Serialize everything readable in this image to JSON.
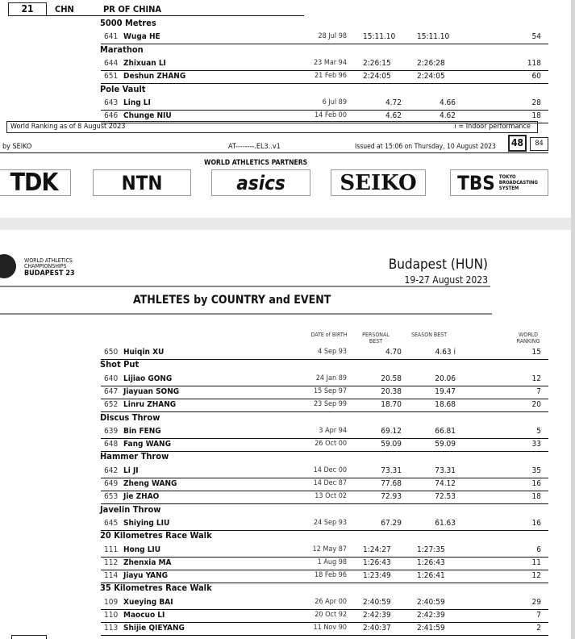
{
  "page1": {
    "country_number": "21",
    "country_code": "CHN",
    "country_name": "PR OF CHINA",
    "events": [
      {
        "name": "5000 Metres",
        "athletes": [
          {
            "bib": "641",
            "name": "Wuga HE",
            "dob": "28 Jul 98",
            "pb": "15:11.10",
            "sb": "15:11.10",
            "rank": "54"
          }
        ]
      },
      {
        "name": "Marathon",
        "athletes": [
          {
            "bib": "644",
            "name": "Zhixuan LI",
            "dob": "23 Mar 94",
            "pb": "2:26:15",
            "sb": "2:26:28",
            "rank": "118"
          },
          {
            "bib": "651",
            "name": "Deshun ZHANG",
            "dob": "21 Feb 96",
            "pb": "2:24:05",
            "sb": "2:24:05",
            "rank": "60"
          }
        ]
      },
      {
        "name": "Pole Vault",
        "athletes": [
          {
            "bib": "643",
            "name": "Ling LI",
            "dob": "6 Jul 89",
            "pb": "4.72",
            "sb": "4.66",
            "rank": "28"
          },
          {
            "bib": "646",
            "name": "Chunge NIU",
            "dob": "14 Feb 00",
            "pb": "4.62",
            "sb": "4.62",
            "rank": "18"
          }
        ]
      }
    ],
    "ranking_note": "World Ranking as of 8 August 2023",
    "indoor_note": "i = Indoor performance",
    "footer": {
      "timing": "by SEIKO",
      "code": "AT--------.EL3..v1",
      "issued": "Issued at 15:06 on Thursday, 10 August  2023",
      "page": "48",
      "total": "84"
    },
    "partners_title": "WORLD ATHLETICS PARTNERS",
    "partners": [
      "TDK",
      "NTN",
      "asics",
      "SEIKO",
      "TBS"
    ],
    "tbs_sub": "TOKYO BROADCASTING SYSTEM"
  },
  "page2": {
    "logo_lines": [
      "WORLD ATHLETICS",
      "CHAMPIONSHIPS",
      "BUDAPEST 23"
    ],
    "venue": "Budapest (HUN)",
    "dates": "19-27 August 2023",
    "title": "ATHLETES by COUNTRY and EVENT",
    "headers": {
      "dob": "DATE of BIRTH",
      "pb": "PERSONAL BEST",
      "sb": "SEASON BEST",
      "rank": "WORLD RANKING"
    },
    "continued": [
      {
        "bib": "650",
        "name": "Huiqin XU",
        "dob": "4 Sep 93",
        "pb": "4.70",
        "sb": "4.63  i",
        "rank": "15"
      }
    ],
    "events": [
      {
        "name": "Shot Put",
        "athletes": [
          {
            "bib": "640",
            "name": "Lijiao GONG",
            "dob": "24 Jan 89",
            "pb": "20.58",
            "sb": "20.06",
            "rank": "12"
          },
          {
            "bib": "647",
            "name": "Jiayuan SONG",
            "dob": "15 Sep 97",
            "pb": "20.38",
            "sb": "19.47",
            "rank": "7"
          },
          {
            "bib": "652",
            "name": "Linru ZHANG",
            "dob": "23 Sep 99",
            "pb": "18.70",
            "sb": "18.68",
            "rank": "20"
          }
        ]
      },
      {
        "name": "Discus Throw",
        "athletes": [
          {
            "bib": "639",
            "name": "Bin FENG",
            "dob": "3 Apr 94",
            "pb": "69.12",
            "sb": "66.81",
            "rank": "5"
          },
          {
            "bib": "648",
            "name": "Fang WANG",
            "dob": "26 Oct 00",
            "pb": "59.09",
            "sb": "59.09",
            "rank": "33"
          }
        ]
      },
      {
        "name": "Hammer Throw",
        "athletes": [
          {
            "bib": "642",
            "name": "Li JI",
            "dob": "14 Dec 00",
            "pb": "73.31",
            "sb": "73.31",
            "rank": "35"
          },
          {
            "bib": "649",
            "name": "Zheng WANG",
            "dob": "14 Dec 87",
            "pb": "77.68",
            "sb": "74.12",
            "rank": "16"
          },
          {
            "bib": "653",
            "name": "Jie ZHAO",
            "dob": "13 Oct 02",
            "pb": "72.93",
            "sb": "72.53",
            "rank": "18"
          }
        ]
      },
      {
        "name": "Javelin Throw",
        "athletes": [
          {
            "bib": "645",
            "name": "Shiying LIU",
            "dob": "24 Sep 93",
            "pb": "67.29",
            "sb": "61.63",
            "rank": "16"
          }
        ]
      },
      {
        "name": "20 Kilometres Race Walk",
        "athletes": [
          {
            "bib": "111",
            "name": "Hong LIU",
            "dob": "12 May 87",
            "pb": "1:24:27",
            "sb": "1:27:35",
            "rank": "6"
          },
          {
            "bib": "112",
            "name": "Zhenxia MA",
            "dob": "1 Aug 98",
            "pb": "1:26:43",
            "sb": "1:26:43",
            "rank": "11"
          },
          {
            "bib": "114",
            "name": "Jiayu YANG",
            "dob": "18 Feb 96",
            "pb": "1:23:49",
            "sb": "1:26:41",
            "rank": "12"
          }
        ]
      },
      {
        "name": "35 Kilometres Race Walk",
        "athletes": [
          {
            "bib": "109",
            "name": "Xueying BAI",
            "dob": "26 Apr 00",
            "pb": "2:40:59",
            "sb": "2:40:59",
            "rank": "29"
          },
          {
            "bib": "110",
            "name": "Maocuo LI",
            "dob": "20 Oct 92",
            "pb": "2:42:39",
            "sb": "2:42:39",
            "rank": "7"
          },
          {
            "bib": "113",
            "name": "Shijie QIEYANG",
            "dob": "11 Nov 90",
            "pb": "2:40:37",
            "sb": "2:41:59",
            "rank": "2"
          }
        ]
      }
    ]
  }
}
